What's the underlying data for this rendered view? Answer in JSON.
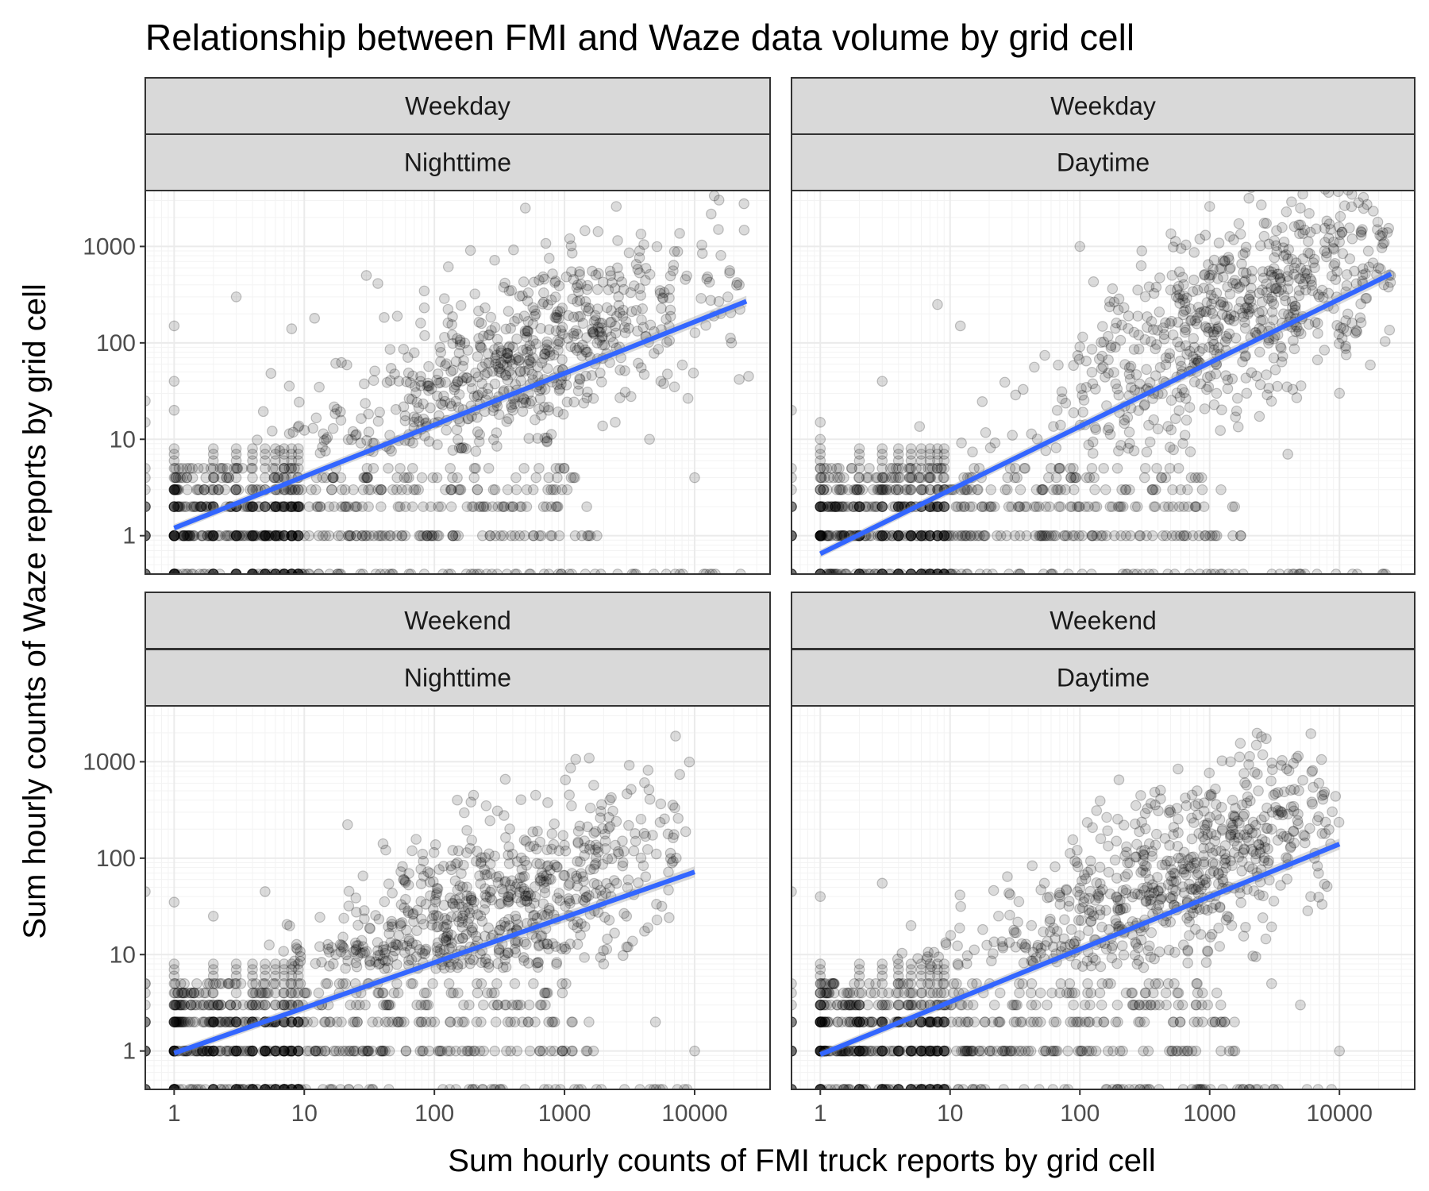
{
  "chart_data": {
    "type": "scatter",
    "title": "Relationship between FMI and Waze data volume by grid cell",
    "xlabel": "Sum hourly counts of FMI truck reports by grid cell",
    "ylabel": "Sum hourly counts of Waze reports by grid cell",
    "x_scale": "log10",
    "y_scale": "log10",
    "xlim": [
      0.6,
      38000
    ],
    "ylim": [
      0.4,
      3800
    ],
    "x_ticks": [
      1,
      10,
      100,
      1000,
      10000
    ],
    "x_tick_labels": [
      "1",
      "10",
      "100",
      "1000",
      "10000"
    ],
    "y_ticks": [
      1,
      10,
      100,
      1000
    ],
    "y_tick_labels": [
      "1",
      "10",
      "100",
      "1000"
    ],
    "grid": true,
    "facets": [
      {
        "strip_top": "Weekday",
        "strip_bottom": "Nighttime",
        "fit_line": {
          "x": [
            1,
            25000
          ],
          "y": [
            1.2,
            270
          ]
        },
        "cloud": {
          "x_range": [
            3,
            25000
          ],
          "x_peak": 500,
          "waze_mean_log": 1.7,
          "spread": 0.45
        },
        "points": [
          [
            500,
            2500
          ],
          [
            2500,
            2600
          ],
          [
            5500,
            40
          ],
          [
            400,
            20
          ],
          [
            30,
            500
          ],
          [
            1,
            150
          ],
          [
            1,
            20
          ],
          [
            1,
            40
          ],
          [
            0.6,
            25
          ],
          [
            0.6,
            15
          ],
          [
            3,
            300
          ],
          [
            10000,
            4
          ],
          [
            26000,
            45
          ],
          [
            7000,
            35
          ],
          [
            4500,
            10
          ],
          [
            18000,
            300
          ],
          [
            8,
            140
          ],
          [
            12,
            180
          ],
          [
            1500,
            80
          ]
        ]
      },
      {
        "strip_top": "Weekday",
        "strip_bottom": "Daytime",
        "fit_line": {
          "x": [
            1,
            25000
          ],
          "y": [
            0.65,
            520
          ]
        },
        "cloud": {
          "x_range": [
            3,
            25000
          ],
          "x_peak": 1500,
          "waze_mean_log": 2.1,
          "spread": 0.5
        },
        "points": [
          [
            1000,
            2600
          ],
          [
            2500,
            2700
          ],
          [
            5000,
            2500
          ],
          [
            15000,
            1500
          ],
          [
            10000,
            30
          ],
          [
            12,
            150
          ],
          [
            8,
            250
          ],
          [
            3,
            40
          ],
          [
            1,
            10
          ],
          [
            1,
            15
          ],
          [
            0.6,
            20
          ],
          [
            4000,
            7
          ],
          [
            1500,
            2
          ],
          [
            20000,
            600
          ],
          [
            22000,
            400
          ],
          [
            7000,
            300
          ],
          [
            300,
            900
          ],
          [
            100,
            1000
          ]
        ]
      },
      {
        "strip_top": "Weekend",
        "strip_bottom": "Nighttime",
        "fit_line": {
          "x": [
            1,
            10000
          ],
          "y": [
            0.95,
            72
          ]
        },
        "cloud": {
          "x_range": [
            3,
            10000
          ],
          "x_peak": 300,
          "waze_mean_log": 1.4,
          "spread": 0.45
        },
        "points": [
          [
            200,
            450
          ],
          [
            150,
            400
          ],
          [
            600,
            450
          ],
          [
            250,
            350
          ],
          [
            0.6,
            45
          ],
          [
            1,
            35
          ],
          [
            5,
            45
          ],
          [
            5000,
            2
          ],
          [
            3000,
            12
          ],
          [
            2000,
            8
          ],
          [
            10000,
            1
          ],
          [
            1000,
            12
          ],
          [
            0.6,
            5
          ],
          [
            2,
            25
          ],
          [
            3000,
            25
          ]
        ]
      },
      {
        "strip_top": "Weekend",
        "strip_bottom": "Daytime",
        "fit_line": {
          "x": [
            1,
            10000
          ],
          "y": [
            0.92,
            140
          ]
        },
        "cloud": {
          "x_range": [
            3,
            10000
          ],
          "x_peak": 500,
          "waze_mean_log": 1.6,
          "spread": 0.45
        },
        "points": [
          [
            200,
            650
          ],
          [
            800,
            500
          ],
          [
            1000,
            450
          ],
          [
            1500,
            400
          ],
          [
            3,
            55
          ],
          [
            0.6,
            45
          ],
          [
            1,
            40
          ],
          [
            5,
            20
          ],
          [
            5000,
            3
          ],
          [
            3000,
            5
          ],
          [
            10000,
            1
          ],
          [
            6000,
            40
          ],
          [
            3000,
            200
          ],
          [
            2000,
            150
          ],
          [
            2500,
            250
          ]
        ]
      }
    ]
  }
}
